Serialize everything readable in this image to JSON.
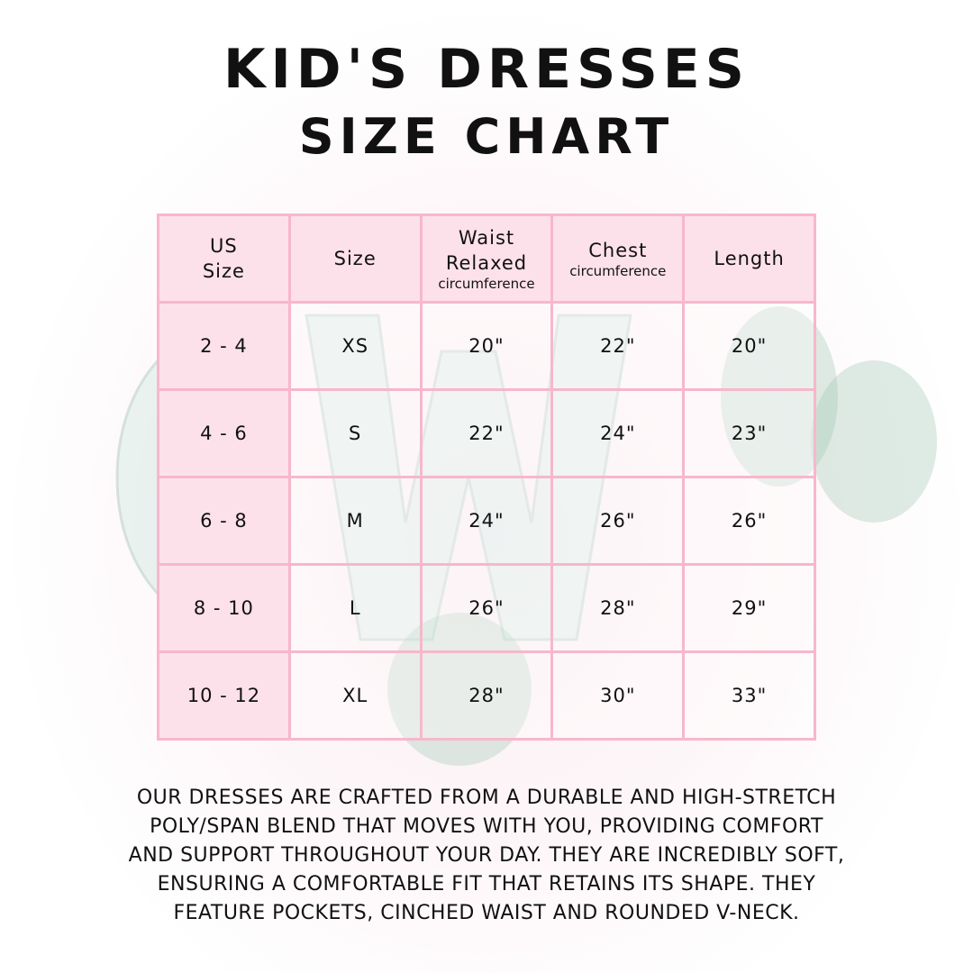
{
  "title_line1": "KID'S DRESSES",
  "title_line2": "SIZE CHART",
  "watermark": "CW",
  "table": {
    "headers": [
      {
        "line1": "US",
        "line2": "Size",
        "sub": ""
      },
      {
        "line1": "Size",
        "line2": "",
        "sub": ""
      },
      {
        "line1": "Waist",
        "line2": "Relaxed",
        "sub": "circumference"
      },
      {
        "line1": "Chest",
        "line2": "",
        "sub": "circumference"
      },
      {
        "line1": "Length",
        "line2": "",
        "sub": ""
      }
    ],
    "rows": [
      [
        "2 - 4",
        "XS",
        "20\"",
        "22\"",
        "20\""
      ],
      [
        "4 - 6",
        "S",
        "22\"",
        "24\"",
        "23\""
      ],
      [
        "6 - 8",
        "M",
        "24\"",
        "26\"",
        "26\""
      ],
      [
        "8 - 10",
        "L",
        "26\"",
        "28\"",
        "29\""
      ],
      [
        "10 - 12",
        "XL",
        "28\"",
        "30\"",
        "33\""
      ]
    ]
  },
  "description": [
    "Our dresses are crafted from a durable and high-stretch",
    "poly/span blend that moves with you, providing comfort",
    "and support throughout your day. They are incredibly soft,",
    "ensuring a comfortable fit that retains its shape. They",
    "feature pockets, cinched waist and rounded V-neck."
  ],
  "colors": {
    "header_fill": "#fde1ea",
    "border": "#f7b7cc",
    "text": "#111111"
  }
}
